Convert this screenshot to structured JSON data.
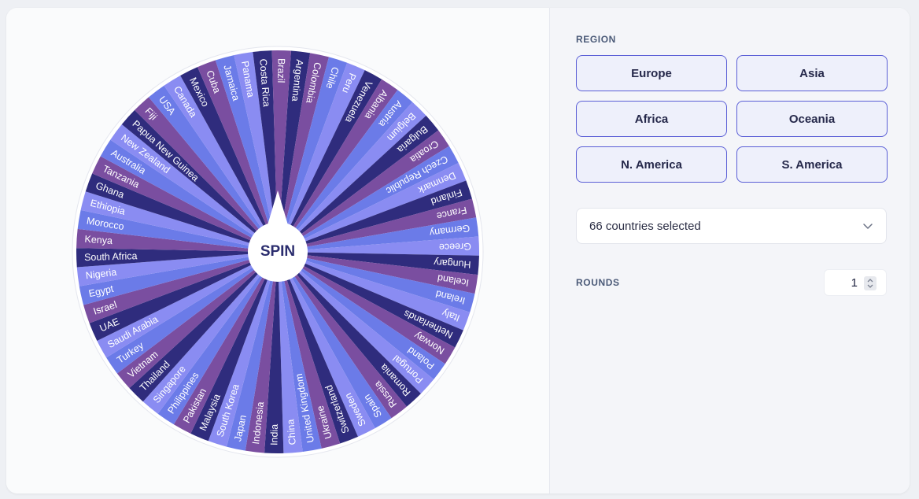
{
  "wheel": {
    "spin_label": "SPIN",
    "segment_colors": [
      "#2f2c7d",
      "#7a4ea0",
      "#6b7be8",
      "#8a8cf2"
    ],
    "countries": [
      "Argentina",
      "Colombia",
      "Chile",
      "Peru",
      "Venezuela",
      "Albania",
      "Austria",
      "Belgium",
      "Bulgaria",
      "Croatia",
      "Czech Republic",
      "Denmark",
      "Finland",
      "France",
      "Germany",
      "Greece",
      "Hungary",
      "Iceland",
      "Ireland",
      "Italy",
      "Netherlands",
      "Norway",
      "Poland",
      "Portugal",
      "Romania",
      "Russia",
      "Spain",
      "Sweden",
      "Switzerland",
      "Ukraine",
      "United Kingdom",
      "China",
      "India",
      "Indonesia",
      "Japan",
      "South Korea",
      "Malaysia",
      "Pakistan",
      "Philippines",
      "Singapore",
      "Thailand",
      "Vietnam",
      "Turkey",
      "Saudi Arabia",
      "UAE",
      "Israel",
      "Egypt",
      "Nigeria",
      "South Africa",
      "Kenya",
      "Morocco",
      "Ethiopia",
      "Ghana",
      "Tanzania",
      "Australia",
      "New Zealand",
      "Papua New Guinea",
      "Fiji",
      "USA",
      "Canada",
      "Mexico",
      "Cuba",
      "Jamaica",
      "Panama",
      "Costa Rica",
      "Brazil"
    ]
  },
  "region": {
    "label": "REGION",
    "buttons": [
      "Europe",
      "Asia",
      "Africa",
      "Oceania",
      "N. America",
      "S. America"
    ]
  },
  "selection": {
    "text": "66 countries selected"
  },
  "rounds": {
    "label": "ROUNDS",
    "value": "1"
  }
}
